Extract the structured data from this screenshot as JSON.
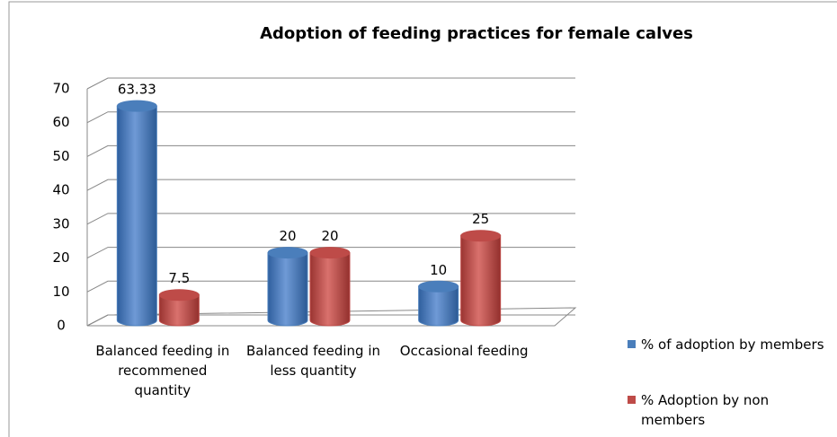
{
  "chart_data": {
    "type": "bar3d",
    "title": "Adoption of feeding practices for female calves",
    "categories": [
      "Balanced feeding in recommened quantity",
      "Balanced feeding in less quantity",
      "Occasional feeding"
    ],
    "series": [
      {
        "name": "% of adoption by members",
        "color": "#4a7ebb",
        "values": [
          63.33,
          20,
          10
        ]
      },
      {
        "name": "% Adoption by non members",
        "color": "#be4b48",
        "values": [
          7.5,
          20,
          25
        ]
      }
    ],
    "ylim": [
      0,
      70
    ],
    "yticks": [
      0,
      10,
      20,
      30,
      40,
      50,
      60,
      70
    ],
    "grid": true,
    "legend": "right"
  }
}
